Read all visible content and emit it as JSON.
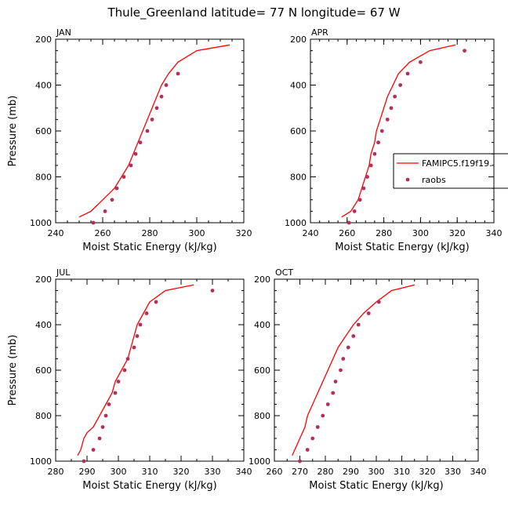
{
  "title": "Thule_Greenland  latitude= 77 N longitude= 67 W",
  "colors": {
    "model": "#ff0000",
    "obs": "#b03060"
  },
  "legend": {
    "model": "FAMIPC5.f19f19.",
    "obs": "raobs",
    "placement": "right"
  },
  "chart_data": [
    {
      "type": "line",
      "label": "JAN",
      "xlabel": "Moist Static Energy (kJ/kg)",
      "ylabel": "Pressure (mb)",
      "xlim": [
        240,
        320
      ],
      "ylim": [
        1000,
        200
      ],
      "xticks": [
        "240",
        "260",
        "280",
        "300",
        "320"
      ],
      "yticks": [
        "200",
        "400",
        "600",
        "800",
        "1000"
      ],
      "x_minor": 5,
      "y_minor": 50,
      "model": [
        [
          250,
          975
        ],
        [
          255,
          950
        ],
        [
          260,
          900
        ],
        [
          265,
          850
        ],
        [
          268,
          800
        ],
        [
          271,
          750
        ],
        [
          273,
          700
        ],
        [
          275,
          650
        ],
        [
          277,
          600
        ],
        [
          279,
          550
        ],
        [
          281,
          500
        ],
        [
          283,
          450
        ],
        [
          285,
          400
        ],
        [
          288,
          350
        ],
        [
          292,
          300
        ],
        [
          300,
          250
        ],
        [
          314,
          225
        ]
      ],
      "obs": [
        [
          256,
          1000
        ],
        [
          261,
          950
        ],
        [
          264,
          900
        ],
        [
          266,
          850
        ],
        [
          269,
          800
        ],
        [
          272,
          750
        ],
        [
          274,
          700
        ],
        [
          276,
          650
        ],
        [
          279,
          600
        ],
        [
          281,
          550
        ],
        [
          283,
          500
        ],
        [
          285,
          450
        ],
        [
          287,
          400
        ],
        [
          292,
          350
        ]
      ]
    },
    {
      "type": "line",
      "label": "APR",
      "xlabel": "Moist Static Energy (kJ/kg)",
      "ylabel": "",
      "xlim": [
        240,
        340
      ],
      "ylim": [
        1000,
        200
      ],
      "xticks": [
        "240",
        "260",
        "280",
        "300",
        "320",
        "340"
      ],
      "yticks": [
        "200",
        "400",
        "600",
        "800",
        "1000"
      ],
      "x_minor": 5,
      "y_minor": 50,
      "model": [
        [
          257,
          975
        ],
        [
          262,
          950
        ],
        [
          266,
          900
        ],
        [
          268,
          850
        ],
        [
          270,
          800
        ],
        [
          272,
          750
        ],
        [
          273,
          700
        ],
        [
          275,
          650
        ],
        [
          276,
          600
        ],
        [
          278,
          550
        ],
        [
          280,
          500
        ],
        [
          282,
          450
        ],
        [
          285,
          400
        ],
        [
          288,
          350
        ],
        [
          294,
          300
        ],
        [
          305,
          250
        ],
        [
          319,
          225
        ]
      ],
      "obs": [
        [
          261,
          1000
        ],
        [
          264,
          950
        ],
        [
          267,
          900
        ],
        [
          269,
          850
        ],
        [
          271,
          800
        ],
        [
          273,
          750
        ],
        [
          275,
          700
        ],
        [
          277,
          650
        ],
        [
          279,
          600
        ],
        [
          282,
          550
        ],
        [
          284,
          500
        ],
        [
          286,
          450
        ],
        [
          289,
          400
        ],
        [
          293,
          350
        ],
        [
          300,
          300
        ],
        [
          324,
          250
        ]
      ]
    },
    {
      "type": "line",
      "label": "JUL",
      "xlabel": "Moist Static Energy (kJ/kg)",
      "ylabel": "Pressure (mb)",
      "xlim": [
        280,
        340
      ],
      "ylim": [
        1000,
        200
      ],
      "xticks": [
        "280",
        "290",
        "300",
        "310",
        "320",
        "330",
        "340"
      ],
      "yticks": [
        "200",
        "400",
        "600",
        "800",
        "1000"
      ],
      "x_minor": 5,
      "y_minor": 50,
      "model": [
        [
          287,
          975
        ],
        [
          288,
          950
        ],
        [
          289,
          900
        ],
        [
          290,
          875
        ],
        [
          292,
          850
        ],
        [
          294,
          800
        ],
        [
          296,
          750
        ],
        [
          298,
          700
        ],
        [
          299,
          650
        ],
        [
          301,
          600
        ],
        [
          303,
          550
        ],
        [
          304,
          500
        ],
        [
          305,
          450
        ],
        [
          306,
          400
        ],
        [
          308,
          350
        ],
        [
          310,
          300
        ],
        [
          315,
          250
        ],
        [
          324,
          225
        ]
      ],
      "obs": [
        [
          289,
          1000
        ],
        [
          292,
          950
        ],
        [
          294,
          900
        ],
        [
          295,
          850
        ],
        [
          296,
          800
        ],
        [
          297,
          750
        ],
        [
          299,
          700
        ],
        [
          300,
          650
        ],
        [
          302,
          600
        ],
        [
          303,
          550
        ],
        [
          305,
          500
        ],
        [
          306,
          450
        ],
        [
          307,
          400
        ],
        [
          309,
          350
        ],
        [
          312,
          300
        ],
        [
          330,
          250
        ]
      ]
    },
    {
      "type": "line",
      "label": "OCT",
      "xlabel": "Moist Static Energy (kJ/kg)",
      "ylabel": "",
      "xlim": [
        260,
        340
      ],
      "ylim": [
        1000,
        200
      ],
      "xticks": [
        "260",
        "270",
        "280",
        "290",
        "300",
        "310",
        "320",
        "330",
        "340"
      ],
      "yticks": [
        "200",
        "400",
        "600",
        "800",
        "1000"
      ],
      "x_minor": 5,
      "y_minor": 50,
      "model": [
        [
          267,
          975
        ],
        [
          268,
          950
        ],
        [
          270,
          900
        ],
        [
          272,
          850
        ],
        [
          273,
          800
        ],
        [
          275,
          750
        ],
        [
          277,
          700
        ],
        [
          279,
          650
        ],
        [
          281,
          600
        ],
        [
          283,
          550
        ],
        [
          285,
          500
        ],
        [
          288,
          450
        ],
        [
          291,
          400
        ],
        [
          295,
          350
        ],
        [
          300,
          300
        ],
        [
          306,
          250
        ],
        [
          315,
          225
        ]
      ],
      "obs": [
        [
          270,
          1000
        ],
        [
          273,
          950
        ],
        [
          275,
          900
        ],
        [
          277,
          850
        ],
        [
          279,
          800
        ],
        [
          281,
          750
        ],
        [
          283,
          700
        ],
        [
          284,
          650
        ],
        [
          286,
          600
        ],
        [
          287,
          550
        ],
        [
          289,
          500
        ],
        [
          291,
          450
        ],
        [
          293,
          400
        ],
        [
          297,
          350
        ],
        [
          301,
          300
        ]
      ]
    }
  ]
}
